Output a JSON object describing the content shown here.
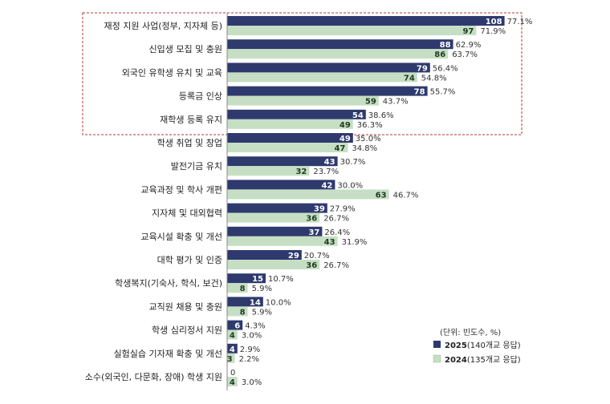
{
  "chart_data": {
    "type": "bar",
    "orientation": "horizontal",
    "unit_label": "(단위: 빈도수, %)",
    "categories": [
      "재정 지원 사업(정부, 지자체 등)",
      "신입생 모집 및 충원",
      "외국인 유학생 유치 및 교육",
      "등록금 인상",
      "재학생 등록 유지",
      "학생 취업 및 창업",
      "발전기금 유치",
      "교육과정 및 학사 개편",
      "지자체 및 대외협력",
      "교육시설 확충 및 개선",
      "대학 평가 및 인증",
      "학생복지(기숙사, 학식, 보건)",
      "교직원 채용 및 충원",
      "학생 심리정서 지원",
      "실험실습 기자재 확충 및 개선",
      "소수(외국인, 다문화, 장애) 학생 지원"
    ],
    "series": [
      {
        "name": "2025",
        "legend_note": "(140개교 응답)",
        "color": "#2e3a6e",
        "values": [
          108,
          88,
          79,
          78,
          54,
          49,
          43,
          42,
          39,
          37,
          29,
          15,
          14,
          6,
          4,
          0
        ],
        "percent_labels": [
          "77.1%",
          "62.9%",
          "56.4%",
          "55.7%",
          "38.6%",
          "35.0%",
          "30.7%",
          "30.0%",
          "27.9%",
          "26.4%",
          "20.7%",
          "10.7%",
          "10.0%",
          "4.3%",
          "2.9%",
          ""
        ]
      },
      {
        "name": "2024",
        "legend_note": "(135개교 응답)",
        "color": "#c6dfc4",
        "values": [
          97,
          86,
          74,
          59,
          49,
          47,
          32,
          63,
          36,
          43,
          36,
          8,
          8,
          4,
          3,
          4
        ],
        "percent_labels": [
          "71.9%",
          "63.7%",
          "54.8%",
          "43.7%",
          "36.3%",
          "34.8%",
          "23.7%",
          "46.7%",
          "26.7%",
          "31.9%",
          "26.7%",
          "5.9%",
          "5.9%",
          "3.0%",
          "2.2%",
          "3.0%"
        ]
      }
    ],
    "highlighted_top_n": 5,
    "legend_position": "bottom-right",
    "grid": false
  }
}
